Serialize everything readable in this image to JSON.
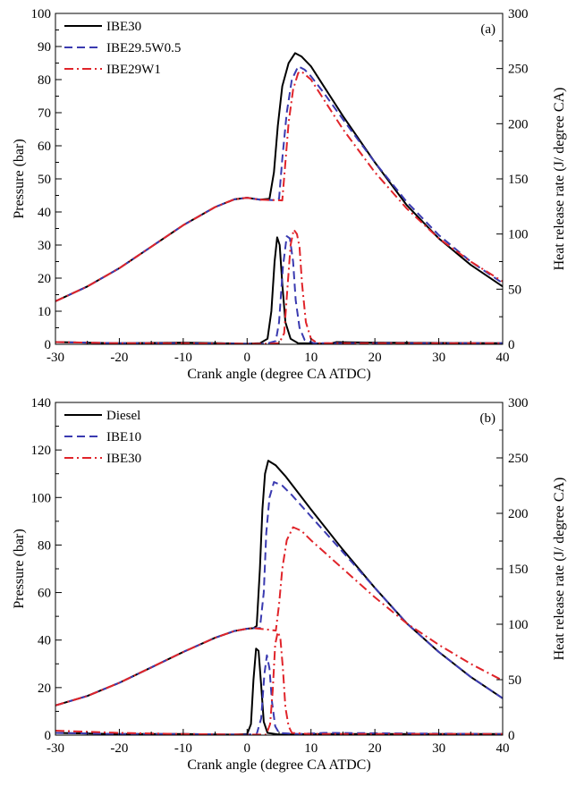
{
  "chart_data": [
    {
      "type": "line",
      "panel_tag": "(a)",
      "xlabel": "Crank angle (degree CA ATDC)",
      "ylabel": "Pressure (bar)",
      "ylabel_right": "Heat release rate (J/ degree CA)",
      "xlim": [
        -30,
        40
      ],
      "ylim": [
        0,
        100
      ],
      "ylim_right": [
        0,
        300
      ],
      "xticks": [
        "-30",
        "-20",
        "-10",
        "0",
        "10",
        "20",
        "30",
        "40"
      ],
      "yticks": [
        "0",
        "10",
        "20",
        "30",
        "40",
        "50",
        "60",
        "70",
        "80",
        "90",
        "100"
      ],
      "yticks_right": [
        "0",
        "50",
        "100",
        "150",
        "200",
        "250",
        "300"
      ],
      "grid": false,
      "legend_position": "top-left",
      "series": [
        {
          "name": "IBE30",
          "color": "#000000",
          "dash": "solid",
          "pressure": [
            [
              -30,
              13
            ],
            [
              -25,
              17.5
            ],
            [
              -20,
              23
            ],
            [
              -15,
              29.5
            ],
            [
              -10,
              36
            ],
            [
              -5,
              41.5
            ],
            [
              -2,
              43.8
            ],
            [
              0,
              44.3
            ],
            [
              2,
              43.7
            ],
            [
              3.5,
              44
            ],
            [
              4.2,
              52
            ],
            [
              4.8,
              66
            ],
            [
              5.5,
              78
            ],
            [
              6.5,
              85
            ],
            [
              7.5,
              88
            ],
            [
              8.5,
              87
            ],
            [
              10,
              84
            ],
            [
              12,
              78
            ],
            [
              15,
              69
            ],
            [
              20,
              55
            ],
            [
              25,
              42
            ],
            [
              30,
              32
            ],
            [
              35,
              24
            ],
            [
              40,
              17.5
            ]
          ],
          "heat_release": [
            [
              -30,
              2
            ],
            [
              -20,
              1
            ],
            [
              -10,
              1.5
            ],
            [
              -4,
              1
            ],
            [
              0,
              0.5
            ],
            [
              2,
              1
            ],
            [
              3.2,
              5
            ],
            [
              3.8,
              30
            ],
            [
              4.3,
              75
            ],
            [
              4.7,
              97
            ],
            [
              5.1,
              90
            ],
            [
              5.5,
              55
            ],
            [
              6,
              20
            ],
            [
              6.8,
              5
            ],
            [
              8,
              1
            ],
            [
              13,
              0.5
            ],
            [
              14,
              2
            ],
            [
              20,
              1.5
            ],
            [
              40,
              1
            ]
          ]
        },
        {
          "name": "IBE29.5W0.5",
          "color": "#3a3ab0",
          "dash": "dashed",
          "pressure": [
            [
              -30,
              13
            ],
            [
              -25,
              17.5
            ],
            [
              -20,
              23
            ],
            [
              -15,
              29.5
            ],
            [
              -10,
              36
            ],
            [
              -5,
              41.5
            ],
            [
              -2,
              43.8
            ],
            [
              0,
              44.3
            ],
            [
              2,
              43.7
            ],
            [
              4,
              43.6
            ],
            [
              5,
              44
            ],
            [
              5.5,
              56
            ],
            [
              6.2,
              70
            ],
            [
              7,
              80
            ],
            [
              8,
              84
            ],
            [
              9,
              83
            ],
            [
              10,
              81
            ],
            [
              12,
              76
            ],
            [
              15,
              68
            ],
            [
              20,
              55
            ],
            [
              25,
              43
            ],
            [
              30,
              33
            ],
            [
              35,
              25
            ],
            [
              40,
              18.5
            ]
          ],
          "heat_release": [
            [
              -30,
              2
            ],
            [
              -20,
              1
            ],
            [
              -10,
              1
            ],
            [
              0,
              0.5
            ],
            [
              3,
              0.5
            ],
            [
              4.5,
              3
            ],
            [
              5,
              20
            ],
            [
              5.6,
              70
            ],
            [
              6.2,
              98
            ],
            [
              6.7,
              96
            ],
            [
              7.2,
              75
            ],
            [
              7.6,
              40
            ],
            [
              8.2,
              15
            ],
            [
              9,
              4
            ],
            [
              10.5,
              1
            ],
            [
              20,
              1
            ],
            [
              40,
              1
            ]
          ]
        },
        {
          "name": "IBE29W1",
          "color": "#e0242a",
          "dash": "dashdot",
          "pressure": [
            [
              -30,
              13
            ],
            [
              -25,
              17.5
            ],
            [
              -20,
              23
            ],
            [
              -15,
              29.5
            ],
            [
              -10,
              36
            ],
            [
              -5,
              41.5
            ],
            [
              -2,
              43.8
            ],
            [
              0,
              44.3
            ],
            [
              2,
              43.7
            ],
            [
              4,
              43.6
            ],
            [
              5.5,
              43.5
            ],
            [
              6,
              55
            ],
            [
              6.5,
              67
            ],
            [
              7.2,
              77
            ],
            [
              8,
              82
            ],
            [
              8.5,
              82.5
            ],
            [
              10,
              80
            ],
            [
              12,
              74
            ],
            [
              15,
              65
            ],
            [
              20,
              52
            ],
            [
              25,
              41
            ],
            [
              30,
              32
            ],
            [
              35,
              25
            ],
            [
              40,
              19
            ]
          ],
          "heat_release": [
            [
              -30,
              2
            ],
            [
              -20,
              1
            ],
            [
              -10,
              1
            ],
            [
              0,
              0.5
            ],
            [
              3,
              0.5
            ],
            [
              5,
              1
            ],
            [
              5.8,
              10
            ],
            [
              6.3,
              50
            ],
            [
              6.8,
              90
            ],
            [
              7.3,
              104
            ],
            [
              7.8,
              100
            ],
            [
              8.2,
              88
            ],
            [
              8.6,
              55
            ],
            [
              9.2,
              20
            ],
            [
              10,
              5
            ],
            [
              11,
              1
            ],
            [
              20,
              1
            ],
            [
              40,
              1
            ]
          ]
        }
      ]
    },
    {
      "type": "line",
      "panel_tag": "(b)",
      "xlabel": "Crank angle (degree CA ATDC)",
      "ylabel": "Pressure (bar)",
      "ylabel_right": "Heat release rate (J/ degree CA)",
      "xlim": [
        -30,
        40
      ],
      "ylim": [
        0,
        140
      ],
      "ylim_right": [
        0,
        300
      ],
      "xticks": [
        "-30",
        "-20",
        "-10",
        "0",
        "10",
        "20",
        "30",
        "40"
      ],
      "yticks": [
        "0",
        "20",
        "40",
        "60",
        "80",
        "100",
        "120",
        "140"
      ],
      "yticks_right": [
        "0",
        "50",
        "100",
        "150",
        "200",
        "250",
        "300"
      ],
      "grid": false,
      "legend_position": "top-left",
      "series": [
        {
          "name": "Diesel",
          "color": "#000000",
          "dash": "solid",
          "pressure": [
            [
              -30,
              12.5
            ],
            [
              -25,
              16.5
            ],
            [
              -20,
              22
            ],
            [
              -15,
              28.5
            ],
            [
              -10,
              35
            ],
            [
              -5,
              41
            ],
            [
              -2,
              43.8
            ],
            [
              0,
              44.8
            ],
            [
              1,
              45
            ],
            [
              1.5,
              46
            ],
            [
              2,
              70
            ],
            [
              2.4,
              95
            ],
            [
              2.8,
              110
            ],
            [
              3.3,
              115.5
            ],
            [
              4.5,
              113.5
            ],
            [
              6,
              109
            ],
            [
              8,
              102
            ],
            [
              10,
              95
            ],
            [
              15,
              78
            ],
            [
              20,
              62
            ],
            [
              25,
              47
            ],
            [
              30,
              35
            ],
            [
              35,
              24.5
            ],
            [
              40,
              15.5
            ]
          ],
          "heat_release": [
            [
              -30,
              2
            ],
            [
              -20,
              1
            ],
            [
              -10,
              1
            ],
            [
              -2,
              0.5
            ],
            [
              0,
              1
            ],
            [
              0.6,
              10
            ],
            [
              1,
              50
            ],
            [
              1.4,
              78
            ],
            [
              1.8,
              76
            ],
            [
              2.2,
              45
            ],
            [
              2.6,
              12
            ],
            [
              3.2,
              2
            ],
            [
              5,
              0.5
            ],
            [
              10,
              1
            ],
            [
              40,
              1
            ]
          ]
        },
        {
          "name": "IBE10",
          "color": "#3a3ab0",
          "dash": "dashed",
          "pressure": [
            [
              -30,
              12.5
            ],
            [
              -25,
              16.5
            ],
            [
              -20,
              22
            ],
            [
              -15,
              28.5
            ],
            [
              -10,
              35
            ],
            [
              -5,
              41
            ],
            [
              -2,
              43.8
            ],
            [
              0,
              44.8
            ],
            [
              1,
              45
            ],
            [
              2,
              45
            ],
            [
              2.6,
              60
            ],
            [
              3,
              85
            ],
            [
              3.5,
              100
            ],
            [
              4.2,
              106.5
            ],
            [
              5.5,
              105
            ],
            [
              7,
              101
            ],
            [
              10,
              92
            ],
            [
              15,
              77
            ],
            [
              20,
              62
            ],
            [
              25,
              47
            ],
            [
              30,
              35
            ],
            [
              35,
              24.5
            ],
            [
              40,
              15.5
            ]
          ],
          "heat_release": [
            [
              -30,
              2
            ],
            [
              -20,
              1
            ],
            [
              -10,
              1
            ],
            [
              0,
              0.5
            ],
            [
              1.5,
              1
            ],
            [
              2.2,
              15
            ],
            [
              2.7,
              55
            ],
            [
              3.1,
              72
            ],
            [
              3.5,
              60
            ],
            [
              3.9,
              30
            ],
            [
              4.4,
              8
            ],
            [
              5,
              2
            ],
            [
              8,
              1
            ],
            [
              12,
              2
            ],
            [
              40,
              1
            ]
          ]
        },
        {
          "name": "IBE30",
          "color": "#e0242a",
          "dash": "dashdot",
          "pressure": [
            [
              -30,
              12.5
            ],
            [
              -25,
              16.5
            ],
            [
              -20,
              22
            ],
            [
              -15,
              28.5
            ],
            [
              -10,
              35
            ],
            [
              -5,
              41
            ],
            [
              -2,
              43.8
            ],
            [
              0,
              44.8
            ],
            [
              1,
              45
            ],
            [
              3,
              44.5
            ],
            [
              4.5,
              44
            ],
            [
              5,
              55
            ],
            [
              5.5,
              70
            ],
            [
              6.2,
              82
            ],
            [
              7.2,
              87.5
            ],
            [
              8.5,
              86
            ],
            [
              10,
              82
            ],
            [
              15,
              70
            ],
            [
              20,
              58
            ],
            [
              25,
              47
            ],
            [
              30,
              38
            ],
            [
              35,
              30
            ],
            [
              40,
              23
            ]
          ],
          "heat_release": [
            [
              -30,
              4
            ],
            [
              -20,
              2
            ],
            [
              -10,
              1
            ],
            [
              0,
              0.5
            ],
            [
              3,
              0.5
            ],
            [
              3.6,
              10
            ],
            [
              4,
              40
            ],
            [
              4.4,
              82
            ],
            [
              4.8,
              93
            ],
            [
              5.2,
              88
            ],
            [
              5.6,
              60
            ],
            [
              6,
              25
            ],
            [
              6.5,
              8
            ],
            [
              7,
              2
            ],
            [
              10,
              1
            ],
            [
              40,
              1
            ]
          ]
        }
      ]
    }
  ]
}
